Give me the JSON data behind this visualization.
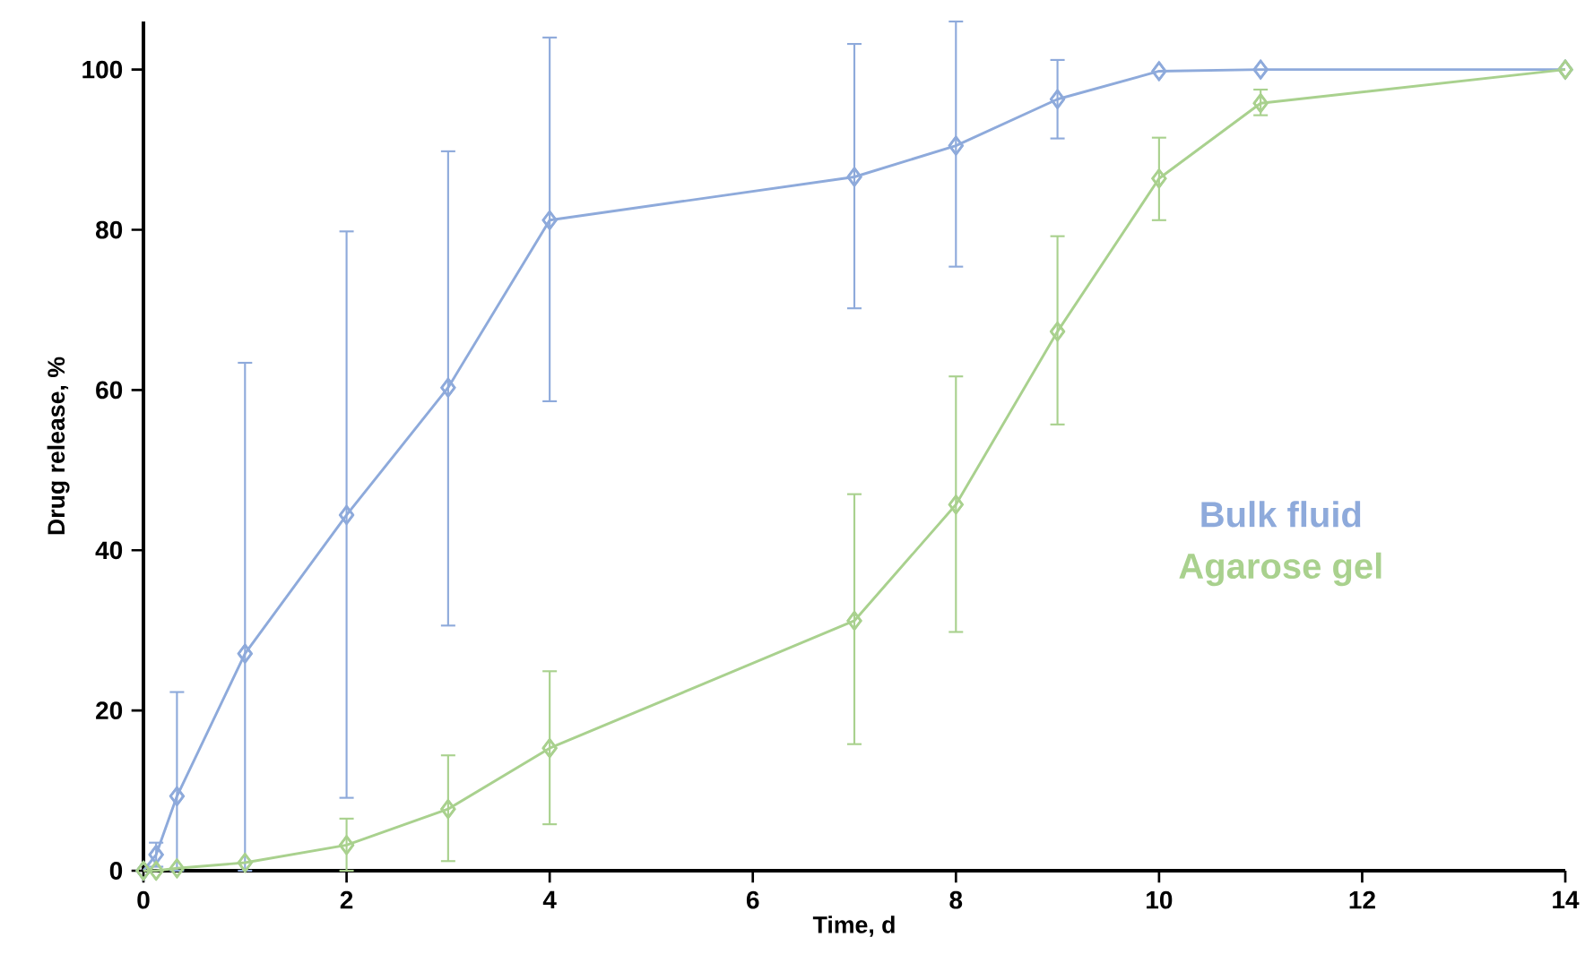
{
  "chart_data": {
    "type": "line",
    "xlabel": "Time, d",
    "ylabel": "Drug release, %",
    "xlim": [
      0,
      14
    ],
    "ylim": [
      0,
      106
    ],
    "xticks": [
      0,
      2,
      4,
      6,
      8,
      10,
      12,
      14
    ],
    "yticks": [
      0,
      20,
      40,
      60,
      80,
      100
    ],
    "grid": false,
    "marker": "diamond",
    "line_style": "solid",
    "series": [
      {
        "name": "Bulk fluid",
        "color": "#8eaadb",
        "x": [
          0,
          0.125,
          0.33,
          1,
          2,
          3,
          4,
          7,
          8,
          9,
          10,
          11,
          14
        ],
        "values": [
          0,
          2,
          9.3,
          27.1,
          44.4,
          60.3,
          81.2,
          86.6,
          90.5,
          96.3,
          99.8,
          100,
          100
        ],
        "errors": [
          null,
          1.5,
          [
            0,
            22.3
          ],
          [
            0,
            63.4
          ],
          [
            9.1,
            79.8
          ],
          [
            30.6,
            89.8
          ],
          [
            58.6,
            104
          ],
          [
            70.2,
            103.2
          ],
          [
            75.4,
            106
          ],
          [
            91.4,
            101.2
          ],
          null,
          null,
          null
        ]
      },
      {
        "name": "Agarose gel",
        "color": "#a9d18e",
        "x": [
          0,
          0.125,
          0.33,
          1,
          2,
          3,
          4,
          7,
          8,
          9,
          10,
          11,
          14
        ],
        "values": [
          0,
          0,
          0.3,
          1.0,
          3.2,
          7.7,
          15.3,
          31.2,
          45.7,
          67.3,
          86.4,
          95.8,
          100
        ],
        "errors": [
          null,
          null,
          null,
          null,
          [
            0,
            6.5
          ],
          [
            1.2,
            14.4
          ],
          [
            5.8,
            24.9
          ],
          [
            15.8,
            47
          ],
          [
            29.8,
            61.7
          ],
          [
            55.7,
            79.2
          ],
          [
            81.2,
            91.5
          ],
          [
            94.3,
            97.5
          ],
          null
        ]
      }
    ]
  }
}
